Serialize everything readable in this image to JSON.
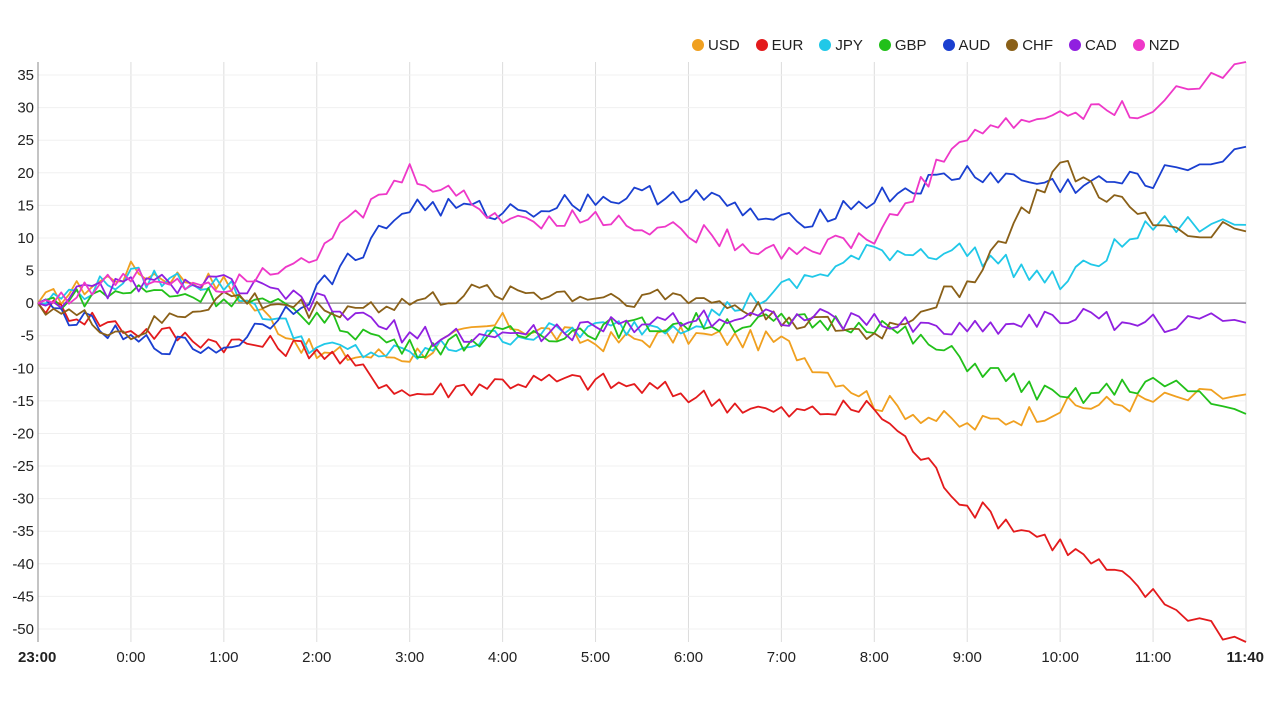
{
  "chart_data": {
    "type": "line",
    "x": [
      "23:00",
      "0:00",
      "1:00",
      "2:00",
      "3:00",
      "4:00",
      "5:00",
      "6:00",
      "7:00",
      "8:00",
      "9:00",
      "10:00",
      "11:00",
      "11:40"
    ],
    "x_bold": [
      "23:00",
      "11:40"
    ],
    "ylim": [
      -52,
      37
    ],
    "yticks": [
      35,
      30,
      25,
      20,
      15,
      10,
      5,
      0,
      -5,
      -10,
      -15,
      -20,
      -25,
      -30,
      -35,
      -40,
      -45,
      -50
    ],
    "grid": true,
    "legend_position": "top-right",
    "series": [
      {
        "name": "USD",
        "color": "#f0a020",
        "values": [
          0,
          5,
          3,
          -8,
          -8,
          -3,
          -6,
          -5,
          -6,
          -15,
          -19,
          -16,
          -15,
          -14
        ]
      },
      {
        "name": "EUR",
        "color": "#e31a1c",
        "values": [
          0,
          -4,
          -6,
          -7,
          -14,
          -12,
          -12,
          -14,
          -17,
          -16,
          -31,
          -37,
          -45,
          -52
        ]
      },
      {
        "name": "JPY",
        "color": "#20c8e8",
        "values": [
          0,
          4,
          3,
          -7,
          -8,
          -5,
          -4,
          -3,
          2,
          8,
          8,
          3,
          12,
          12
        ]
      },
      {
        "name": "GBP",
        "color": "#22c01a",
        "values": [
          0,
          2,
          1,
          -2,
          -7,
          -5,
          -4,
          -3,
          -3,
          -3,
          -9,
          -15,
          -12,
          -17
        ]
      },
      {
        "name": "AUD",
        "color": "#1a3fd0",
        "values": [
          0,
          -6,
          -7,
          2,
          15,
          14,
          16,
          17,
          12,
          16,
          20,
          18,
          19,
          24
        ]
      },
      {
        "name": "CHF",
        "color": "#8a6018",
        "values": [
          0,
          -5,
          1,
          -1,
          0,
          2,
          1,
          1,
          -2,
          -5,
          3,
          21,
          12,
          11
        ]
      },
      {
        "name": "CAD",
        "color": "#9020e0",
        "values": [
          0,
          3,
          3,
          0,
          -5,
          -5,
          -4,
          -2,
          -2,
          -3,
          -4,
          -2,
          -3,
          -3
        ]
      },
      {
        "name": "NZD",
        "color": "#ee38c8",
        "values": [
          0,
          4,
          3,
          8,
          20,
          13,
          13,
          11,
          8,
          10,
          26,
          29,
          30,
          37
        ]
      }
    ]
  }
}
